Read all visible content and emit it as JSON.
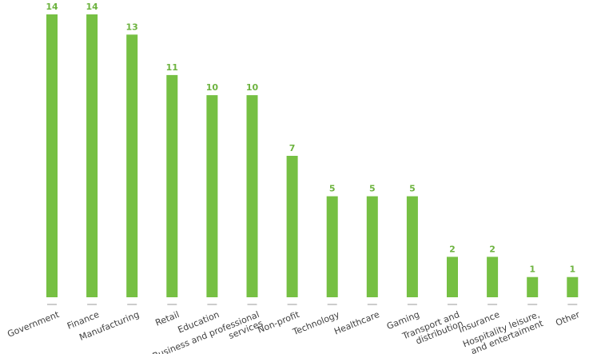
{
  "colors": {
    "bar": "#76c043",
    "value_label": "#6db33f",
    "category_label": "#3f3f3f",
    "tick": "#9a9a9a"
  },
  "chart_data": {
    "type": "bar",
    "title": "",
    "xlabel": "",
    "ylabel": "",
    "ylim": [
      0,
      14
    ],
    "grid": false,
    "legend": "none",
    "categories": [
      [
        "Government"
      ],
      [
        "Finance"
      ],
      [
        "Manufacturing"
      ],
      [
        "Retail"
      ],
      [
        "Education"
      ],
      [
        "Business and professional",
        "services"
      ],
      [
        "Non-profit"
      ],
      [
        "Technology"
      ],
      [
        "Healthcare"
      ],
      [
        "Gaming"
      ],
      [
        "Transport and",
        "distribution"
      ],
      [
        "Insurance"
      ],
      [
        "Hospitality leisure,",
        "and entertaiment"
      ],
      [
        "Other"
      ]
    ],
    "values": [
      14,
      14,
      13,
      11,
      10,
      10,
      7,
      5,
      5,
      5,
      2,
      2,
      1,
      1
    ]
  }
}
